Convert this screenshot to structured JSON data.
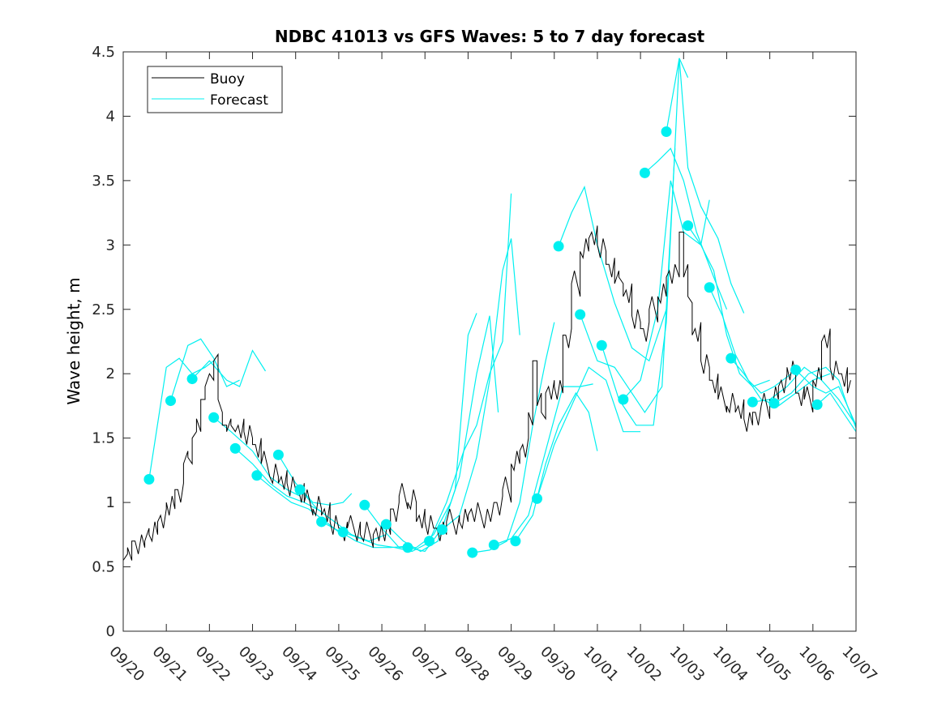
{
  "chart_data": {
    "type": "line",
    "title": "NDBC 41013 vs GFS Waves: 5 to 7 day forecast",
    "xlabel": "",
    "ylabel": "Wave height, m",
    "xlim": [
      0,
      17
    ],
    "ylim": [
      0,
      4.5
    ],
    "grid": false,
    "legend_position": "top-left",
    "x_unit": "days since 09/20 00:00",
    "x_tick_values": [
      0,
      1,
      2,
      3,
      4,
      5,
      6,
      7,
      8,
      9,
      10,
      11,
      12,
      13,
      14,
      15,
      16,
      17
    ],
    "x_tick_labels": [
      "09/20",
      "09/21",
      "09/22",
      "09/23",
      "09/24",
      "09/25",
      "09/26",
      "09/27",
      "09/28",
      "09/29",
      "09/30",
      "10/01",
      "10/02",
      "10/03",
      "10/04",
      "10/05",
      "10/06",
      "10/07"
    ],
    "y_tick_values": [
      0,
      0.5,
      1,
      1.5,
      2,
      2.5,
      3,
      3.5,
      4,
      4.5
    ],
    "y_tick_labels": [
      "0",
      "0.5",
      "1",
      "1.5",
      "2",
      "2.5",
      "3",
      "3.5",
      "4",
      "4.5"
    ],
    "colors": {
      "buoy": "#000000",
      "forecast": "#00f0f0",
      "marker": "#00f0f0"
    },
    "legend": [
      {
        "label": "Buoy",
        "series": "buoy"
      },
      {
        "label": "Forecast",
        "series": "forecast"
      }
    ],
    "buoy": {
      "name": "Buoy",
      "x": [
        0,
        0.1,
        0.2,
        0.5,
        0.6,
        0.8,
        1.0,
        1.2,
        1.4,
        1.5,
        1.6,
        1.7,
        1.8,
        1.9,
        2.0,
        2.1,
        2.2,
        2.3,
        2.4,
        2.5,
        2.6,
        2.8,
        3.0,
        3.2,
        3.4,
        3.6,
        3.8,
        4.0,
        4.2,
        4.4,
        4.6,
        4.8,
        5.0,
        5.2,
        5.5,
        5.8,
        6.0,
        6.2,
        6.4,
        6.6,
        6.8,
        7.0,
        7.2,
        7.5,
        7.8,
        8.0,
        8.3,
        8.6,
        8.8,
        9.0,
        9.2,
        9.4,
        9.5,
        9.6,
        9.7,
        9.8,
        10.0,
        10.2,
        10.4,
        10.6,
        10.8,
        11.0,
        11.2,
        11.4,
        11.5,
        11.6,
        11.8,
        12.0,
        12.2,
        12.4,
        12.6,
        12.8,
        12.9,
        13.0,
        13.1,
        13.2,
        13.4,
        13.6,
        13.8,
        14.0,
        14.2,
        14.4,
        14.6,
        14.8,
        15.0,
        15.2,
        15.4,
        15.6,
        15.8,
        16.0,
        16.2,
        16.4,
        16.6,
        16.8
      ],
      "y": [
        0.55,
        0.65,
        0.7,
        0.7,
        0.75,
        0.85,
        1.0,
        1.1,
        1.3,
        1.35,
        1.5,
        1.65,
        1.8,
        1.9,
        2.0,
        2.1,
        1.8,
        1.6,
        1.55,
        1.6,
        1.55,
        1.55,
        1.45,
        1.3,
        1.2,
        1.15,
        1.15,
        1.1,
        1.0,
        0.95,
        0.9,
        0.85,
        0.8,
        0.8,
        0.75,
        0.75,
        0.8,
        0.95,
        1.05,
        1.0,
        0.85,
        0.85,
        0.8,
        0.85,
        0.85,
        0.9,
        0.9,
        1.0,
        1.1,
        1.3,
        1.4,
        1.7,
        2.1,
        1.75,
        1.7,
        1.85,
        1.9,
        2.3,
        2.7,
        2.95,
        3.05,
        3.0,
        2.85,
        2.7,
        2.75,
        2.6,
        2.45,
        2.35,
        2.5,
        2.6,
        2.75,
        2.85,
        3.1,
        2.75,
        2.6,
        2.3,
        2.1,
        1.95,
        1.8,
        1.75,
        1.7,
        1.65,
        1.7,
        1.75,
        1.8,
        1.9,
        2.05,
        1.85,
        1.8,
        1.95,
        2.25,
        2.05,
        2.0,
        1.85
      ]
    },
    "forecasts": [
      {
        "x": [
          0.6,
          1.0,
          1.3,
          1.6,
          1.9,
          2.1
        ],
        "y": [
          1.18,
          2.05,
          2.12,
          2.0,
          2.05,
          2.1
        ]
      },
      {
        "x": [
          1.1,
          1.5,
          1.8,
          2.1,
          2.4,
          2.7
        ],
        "y": [
          1.79,
          2.22,
          2.27,
          2.12,
          1.9,
          1.95
        ]
      },
      {
        "x": [
          1.6,
          2.0,
          2.4,
          2.7,
          3.0,
          3.3
        ],
        "y": [
          1.96,
          2.1,
          1.95,
          1.9,
          2.18,
          2.02
        ]
      },
      {
        "x": [
          2.1,
          2.5,
          3.0,
          3.4,
          3.8,
          4.1
        ],
        "y": [
          1.66,
          1.55,
          1.4,
          1.2,
          1.1,
          1.05
        ]
      },
      {
        "x": [
          2.6,
          3.0,
          3.4,
          3.8,
          4.2,
          4.6
        ],
        "y": [
          1.42,
          1.3,
          1.15,
          1.05,
          1.0,
          0.93
        ]
      },
      {
        "x": [
          3.1,
          3.5,
          3.9,
          4.3,
          4.7,
          5.0
        ],
        "y": [
          1.21,
          1.1,
          1.0,
          0.95,
          0.85,
          0.77
        ]
      },
      {
        "x": [
          3.6,
          4.0,
          4.4,
          4.8,
          5.1,
          5.3
        ],
        "y": [
          1.37,
          1.15,
          1.0,
          0.98,
          1.0,
          1.07
        ]
      },
      {
        "x": [
          4.1,
          4.5,
          4.9,
          5.3,
          5.7,
          6.1
        ],
        "y": [
          1.1,
          0.95,
          0.85,
          0.75,
          0.7,
          0.75
        ]
      },
      {
        "x": [
          4.6,
          5.0,
          5.4,
          5.8,
          6.2,
          6.6
        ],
        "y": [
          0.85,
          0.78,
          0.7,
          0.65,
          0.65,
          0.66
        ]
      },
      {
        "x": [
          5.1,
          5.5,
          5.9,
          6.3,
          6.7,
          7.1
        ],
        "y": [
          0.77,
          0.72,
          0.67,
          0.65,
          0.62,
          0.69
        ]
      },
      {
        "x": [
          5.6,
          6.0,
          6.4,
          6.8,
          7.2,
          7.6
        ],
        "y": [
          0.98,
          0.8,
          0.65,
          0.65,
          0.75,
          1.0
        ]
      },
      {
        "x": [
          6.1,
          6.5,
          6.9,
          7.3,
          7.7,
          8.0,
          8.2
        ],
        "y": [
          0.83,
          0.7,
          0.62,
          0.7,
          1.1,
          2.3,
          2.47
        ]
      },
      {
        "x": [
          6.6,
          7.0,
          7.4,
          7.8,
          8.2,
          8.5,
          8.7
        ],
        "y": [
          0.65,
          0.62,
          0.8,
          1.2,
          2.0,
          2.45,
          1.7
        ]
      },
      {
        "x": [
          7.1,
          7.5,
          7.9,
          8.2,
          8.5,
          8.8,
          9.0
        ],
        "y": [
          0.7,
          1.0,
          1.4,
          1.6,
          2.0,
          2.25,
          3.4
        ]
      },
      {
        "x": [
          7.4,
          7.8,
          8.2,
          8.5,
          8.8,
          9.0,
          9.2
        ],
        "y": [
          0.79,
          0.9,
          1.35,
          1.95,
          2.8,
          3.05,
          2.3
        ]
      },
      {
        "x": [
          8.1,
          8.5,
          8.9,
          9.2,
          9.5,
          9.8,
          10.0
        ],
        "y": [
          0.61,
          0.63,
          0.7,
          1.0,
          1.6,
          2.1,
          2.4
        ]
      },
      {
        "x": [
          8.6,
          9.0,
          9.4,
          9.8,
          10.2,
          10.6,
          10.9
        ],
        "y": [
          0.67,
          0.72,
          0.9,
          1.4,
          1.9,
          1.9,
          1.92
        ]
      },
      {
        "x": [
          9.1,
          9.5,
          9.8,
          10.1,
          10.5,
          10.8,
          11.0
        ],
        "y": [
          0.7,
          0.9,
          1.3,
          1.6,
          1.85,
          1.7,
          1.4
        ]
      },
      {
        "x": [
          9.6,
          10.0,
          10.4,
          10.8,
          11.2,
          11.6,
          12.0
        ],
        "y": [
          1.03,
          1.45,
          1.75,
          2.05,
          1.95,
          1.55,
          1.55
        ]
      },
      {
        "x": [
          10.1,
          10.4,
          10.7,
          11.0,
          11.4,
          11.8,
          12.2,
          12.6
        ],
        "y": [
          2.99,
          3.25,
          3.45,
          3.0,
          2.55,
          2.2,
          2.1,
          2.5
        ]
      },
      {
        "x": [
          10.6,
          11.0,
          11.4,
          11.8,
          12.1,
          12.5,
          12.8
        ],
        "y": [
          2.46,
          2.1,
          2.05,
          1.85,
          1.7,
          1.9,
          3.75
        ]
      },
      {
        "x": [
          11.1,
          11.5,
          11.9,
          12.3,
          12.6,
          12.9,
          13.1
        ],
        "y": [
          2.22,
          1.8,
          1.6,
          1.6,
          2.4,
          4.45,
          4.3
        ]
      },
      {
        "x": [
          11.6,
          12.0,
          12.4,
          12.7,
          13.0,
          13.4,
          13.6
        ],
        "y": [
          1.8,
          1.95,
          2.5,
          3.5,
          3.1,
          3.0,
          3.35
        ]
      },
      {
        "x": [
          12.1,
          12.4,
          12.7,
          13.0,
          13.3,
          13.7,
          14.0
        ],
        "y": [
          3.56,
          3.65,
          3.75,
          3.5,
          3.1,
          2.75,
          2.5
        ]
      },
      {
        "x": [
          12.6,
          12.9,
          13.1,
          13.4,
          13.8,
          14.1,
          14.4
        ],
        "y": [
          3.88,
          4.45,
          3.6,
          3.3,
          3.05,
          2.7,
          2.47
        ]
      },
      {
        "x": [
          13.1,
          13.4,
          13.7,
          14.0,
          14.3,
          14.6,
          15.0
        ],
        "y": [
          3.15,
          3.0,
          2.8,
          2.3,
          2.0,
          1.9,
          1.95
        ]
      },
      {
        "x": [
          13.6,
          13.9,
          14.2,
          14.5,
          14.8,
          15.1,
          15.5
        ],
        "y": [
          2.67,
          2.45,
          2.15,
          1.95,
          1.85,
          1.9,
          2.0
        ]
      },
      {
        "x": [
          14.1,
          14.4,
          14.8,
          15.2,
          15.6,
          16.0,
          16.4
        ],
        "y": [
          2.12,
          2.0,
          1.8,
          1.75,
          1.85,
          1.95,
          2.0
        ]
      },
      {
        "x": [
          14.6,
          15.0,
          15.4,
          15.8,
          16.2,
          16.6,
          17.0
        ],
        "y": [
          1.78,
          1.8,
          1.9,
          2.05,
          1.95,
          1.8,
          1.6
        ]
      },
      {
        "x": [
          15.1,
          15.5,
          15.9,
          16.3,
          16.6,
          16.8,
          17.0
        ],
        "y": [
          1.77,
          1.85,
          2.0,
          2.05,
          1.95,
          1.75,
          1.58
        ]
      },
      {
        "x": [
          15.6,
          16.0,
          16.3,
          16.6,
          16.8,
          17.0
        ],
        "y": [
          2.03,
          1.9,
          1.85,
          1.9,
          1.75,
          1.6
        ]
      },
      {
        "x": [
          16.1,
          16.4,
          16.7,
          17.0
        ],
        "y": [
          1.76,
          1.85,
          1.7,
          1.55
        ]
      }
    ],
    "markers": {
      "x": [
        0.6,
        1.1,
        1.6,
        2.1,
        2.6,
        3.1,
        3.6,
        4.1,
        4.6,
        5.1,
        5.6,
        6.1,
        6.6,
        7.1,
        7.4,
        8.1,
        8.6,
        9.1,
        9.6,
        10.1,
        10.6,
        11.1,
        11.6,
        12.1,
        12.6,
        13.1,
        13.6,
        14.1,
        14.6,
        15.1,
        15.6,
        16.1
      ],
      "y": [
        1.18,
        1.79,
        1.96,
        1.66,
        1.42,
        1.21,
        1.37,
        1.1,
        0.85,
        0.77,
        0.98,
        0.83,
        0.65,
        0.7,
        0.79,
        0.61,
        0.67,
        0.7,
        1.03,
        2.99,
        2.46,
        2.22,
        1.8,
        3.56,
        3.88,
        3.15,
        2.67,
        2.12,
        1.78,
        1.77,
        2.03,
        1.76
      ]
    }
  }
}
